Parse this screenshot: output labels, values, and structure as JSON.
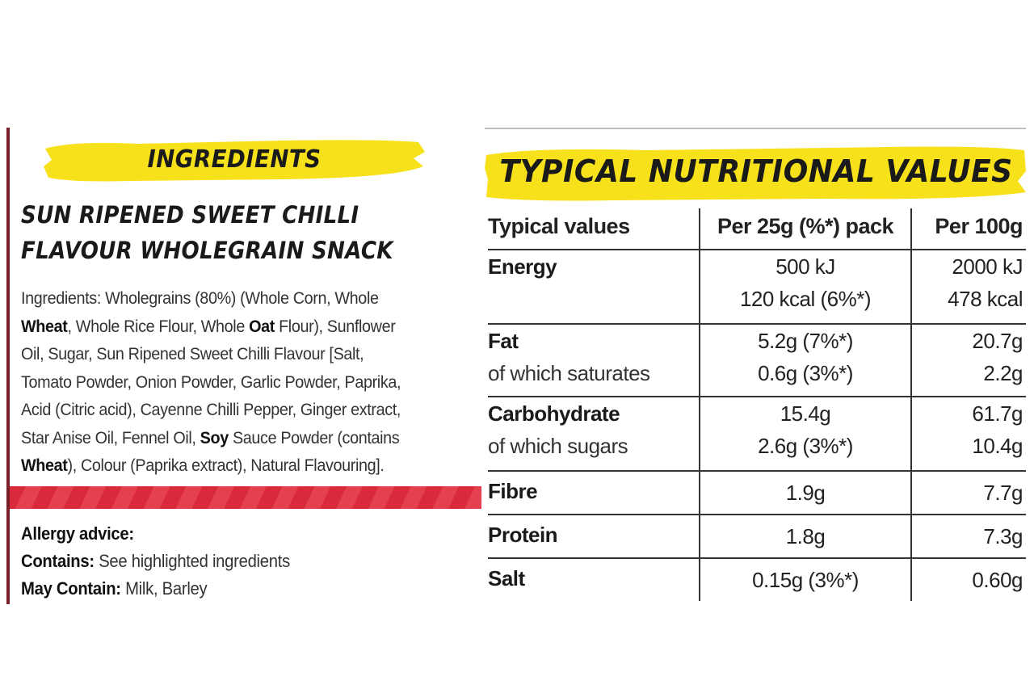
{
  "ingredients_panel": {
    "heading": "INGREDIENTS",
    "product_title_lines": [
      "SUN RIPENED SWEET CHILLI",
      "FLAVOUR WHOLEGRAIN SNACK"
    ],
    "ingredient_lines": [
      [
        {
          "t": "Ingredients: Wholegrains (80%) (Whole Corn, Whole",
          "b": false
        }
      ],
      [
        {
          "t": "Wheat",
          "b": true
        },
        {
          "t": ", Whole Rice Flour, Whole ",
          "b": false
        },
        {
          "t": "Oat",
          "b": true
        },
        {
          "t": " Flour), Sunflower",
          "b": false
        }
      ],
      [
        {
          "t": "Oil, Sugar, Sun Ripened Sweet Chilli Flavour [Salt,",
          "b": false
        }
      ],
      [
        {
          "t": "Tomato Powder, Onion Powder, Garlic Powder, Paprika,",
          "b": false
        }
      ],
      [
        {
          "t": "Acid (Citric acid), Cayenne Chilli Pepper, Ginger extract,",
          "b": false
        }
      ],
      [
        {
          "t": "Star Anise Oil, Fennel Oil, ",
          "b": false
        },
        {
          "t": "Soy",
          "b": true
        },
        {
          "t": " Sauce Powder (contains",
          "b": false
        }
      ],
      [
        {
          "t": "Wheat",
          "b": true
        },
        {
          "t": "), Colour (Paprika extract), Natural Flavouring].",
          "b": false
        }
      ]
    ],
    "allergy_heading": "Allergy advice:",
    "contains_label": "Contains:",
    "contains_value": " See highlighted ingredients",
    "may_contain_label": "May Contain:",
    "may_contain_value": " Milk, Barley"
  },
  "nutrition_panel": {
    "heading": "TYPICAL NUTRITIONAL VALUES",
    "columns": [
      "Typical values",
      "Per 25g (%*) pack",
      "Per 100g"
    ],
    "rows": [
      {
        "label": "Energy",
        "sub": "",
        "per_pack": [
          "500 kJ",
          "120 kcal (6%*)"
        ],
        "per_100g": [
          "2000 kJ",
          "478 kcal"
        ]
      },
      {
        "label": "Fat",
        "sub": "of which saturates",
        "per_pack": [
          "5.2g (7%*)",
          "0.6g (3%*)"
        ],
        "per_100g": [
          "20.7g",
          "2.2g"
        ]
      },
      {
        "label": "Carbohydrate",
        "sub": "of which sugars",
        "per_pack": [
          "15.4g",
          "2.6g (3%*)"
        ],
        "per_100g": [
          "61.7g",
          "10.4g"
        ]
      },
      {
        "label": "Fibre",
        "sub": "",
        "per_pack": [
          "1.9g"
        ],
        "per_100g": [
          "7.7g"
        ]
      },
      {
        "label": "Protein",
        "sub": "",
        "per_pack": [
          "1.8g"
        ],
        "per_100g": [
          "7.3g"
        ]
      },
      {
        "label": "Salt",
        "sub": "",
        "per_pack": [
          "0.15g (3%*)"
        ],
        "per_100g": [
          "0.60g"
        ]
      }
    ]
  },
  "colors": {
    "banner_yellow": "#f7e11b",
    "stripe_red": "#d92a3c",
    "border_maroon": "#7a1f2b"
  }
}
